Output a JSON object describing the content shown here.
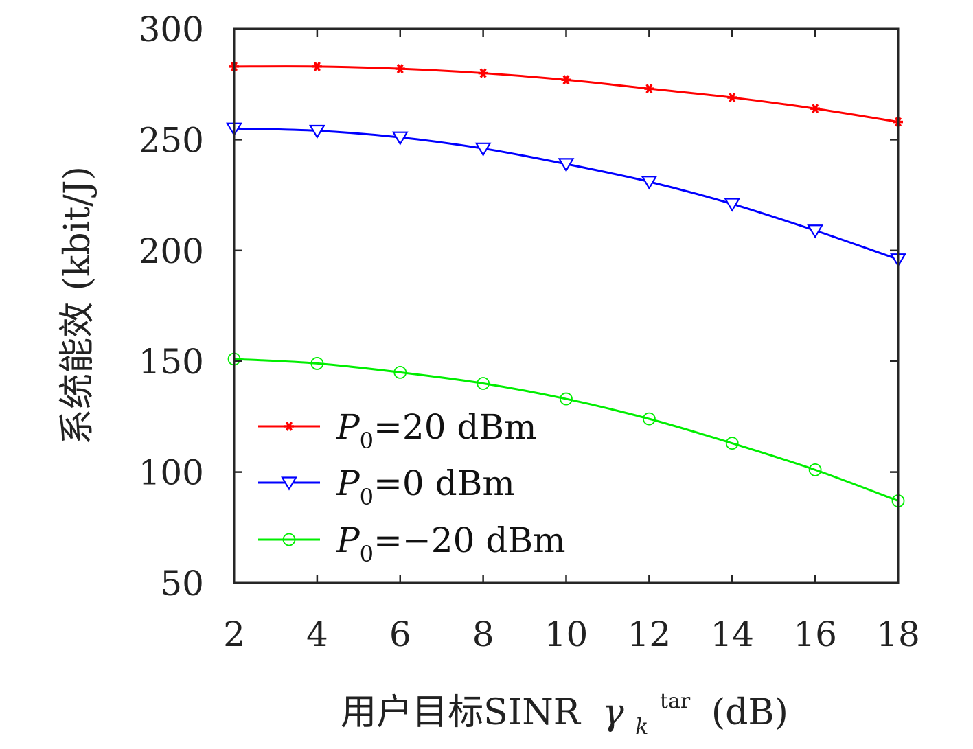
{
  "chart_data": {
    "type": "line",
    "xlabel": "用户目标SINR",
    "xlabel_symbol": "γ",
    "xlabel_sub": "k",
    "xlabel_sup": "tar",
    "xlabel_unit": "(dB)",
    "ylabel": "系统能效 (kbit/J)",
    "xlim": [
      2,
      18
    ],
    "ylim": [
      50,
      300
    ],
    "x_ticks": [
      2,
      4,
      6,
      8,
      10,
      12,
      14,
      16,
      18
    ],
    "y_ticks": [
      50,
      100,
      150,
      200,
      250,
      300
    ],
    "x": [
      2,
      4,
      6,
      8,
      10,
      12,
      14,
      16,
      18
    ],
    "grid": false,
    "legend_position": "lower-left",
    "series": [
      {
        "name": "P0=20 dBm",
        "label_main": "P",
        "label_sub": "0",
        "label_rest": "=20 dBm",
        "color": "#ff0000",
        "marker": "asterisk",
        "values": [
          283,
          283,
          282,
          280,
          277,
          273,
          269,
          264,
          258
        ]
      },
      {
        "name": "P0=0 dBm",
        "label_main": "P",
        "label_sub": "0",
        "label_rest": "=0 dBm",
        "color": "#0000ff",
        "marker": "triangle-down",
        "values": [
          255,
          254,
          251,
          246,
          239,
          231,
          221,
          209,
          196
        ]
      },
      {
        "name": "P0=−20 dBm",
        "label_main": "P",
        "label_sub": "0",
        "label_rest": "=−20 dBm",
        "color": "#00ee00",
        "marker": "circle",
        "values": [
          151,
          149,
          145,
          140,
          133,
          124,
          113,
          101,
          87
        ]
      }
    ]
  }
}
